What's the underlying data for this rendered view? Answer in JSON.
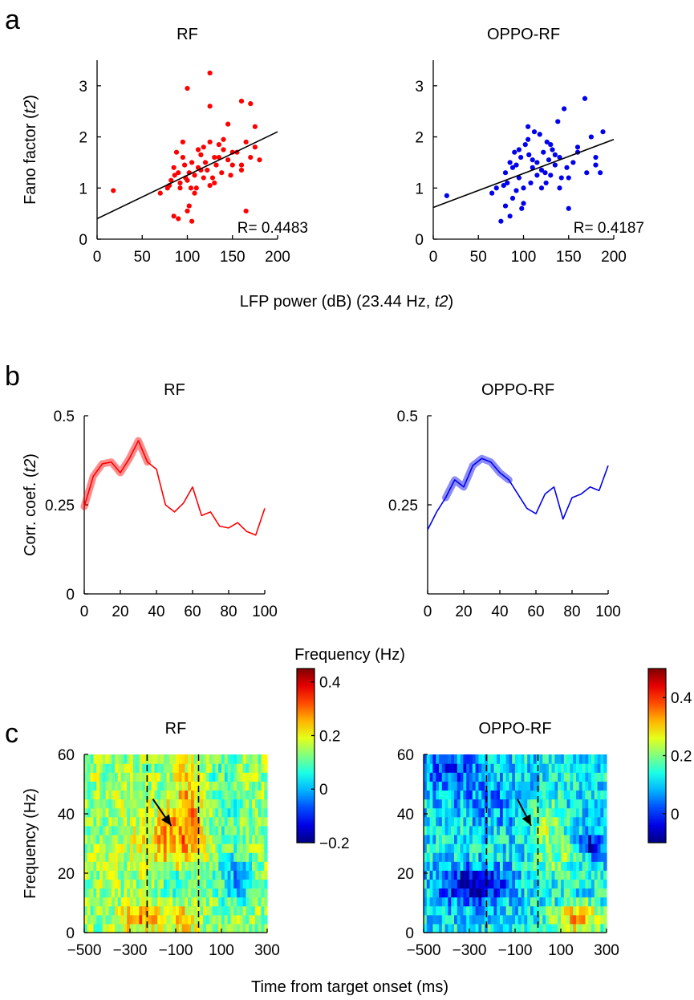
{
  "panel_labels": [
    "a",
    "b",
    "c"
  ],
  "chart_data": [
    {
      "id": "a-rf",
      "type": "scatter",
      "title": "RF",
      "ylabel": "Fano factor (t2)",
      "xlim": [
        0,
        200
      ],
      "ylim": [
        0,
        3.5
      ],
      "xticks": [
        0,
        50,
        100,
        150,
        200
      ],
      "yticks": [
        0,
        1,
        2,
        3
      ],
      "point_color": "#ff0000",
      "fit_line": {
        "x": [
          0,
          200
        ],
        "y": [
          0.4,
          2.1
        ]
      },
      "annotation": "R= 0.4483",
      "points": [
        [
          18,
          0.95
        ],
        [
          70,
          0.9
        ],
        [
          78,
          1.0
        ],
        [
          80,
          1.05
        ],
        [
          85,
          1.4
        ],
        [
          88,
          1.7
        ],
        [
          90,
          1.3
        ],
        [
          92,
          1.1
        ],
        [
          95,
          1.6
        ],
        [
          98,
          1.2
        ],
        [
          100,
          1.15
        ],
        [
          102,
          1.3
        ],
        [
          105,
          1.5
        ],
        [
          108,
          1.25
        ],
        [
          110,
          1.0
        ],
        [
          112,
          1.4
        ],
        [
          115,
          1.65
        ],
        [
          118,
          1.8
        ],
        [
          120,
          1.5
        ],
        [
          122,
          1.35
        ],
        [
          125,
          1.9
        ],
        [
          128,
          1.2
        ],
        [
          130,
          1.6
        ],
        [
          132,
          1.45
        ],
        [
          135,
          1.85
        ],
        [
          138,
          1.3
        ],
        [
          140,
          1.75
        ],
        [
          145,
          2.25
        ],
        [
          150,
          1.7
        ],
        [
          155,
          1.7
        ],
        [
          160,
          1.45
        ],
        [
          165,
          1.9
        ],
        [
          170,
          1.6
        ],
        [
          175,
          1.8
        ],
        [
          180,
          1.55
        ],
        [
          100,
          2.95
        ],
        [
          125,
          3.25
        ],
        [
          125,
          2.6
        ],
        [
          160,
          2.7
        ],
        [
          170,
          2.65
        ],
        [
          85,
          0.45
        ],
        [
          90,
          0.4
        ],
        [
          100,
          0.55
        ],
        [
          105,
          0.35
        ],
        [
          102,
          0.65
        ],
        [
          165,
          0.55
        ],
        [
          140,
          1.95
        ],
        [
          95,
          1.9
        ],
        [
          115,
          1.35
        ],
        [
          92,
          1.0
        ],
        [
          82,
          1.15
        ],
        [
          108,
          0.9
        ],
        [
          125,
          1.05
        ],
        [
          148,
          1.25
        ],
        [
          175,
          2.2
        ],
        [
          135,
          1.6
        ],
        [
          97,
          1.45
        ],
        [
          112,
          1.75
        ],
        [
          130,
          1.1
        ],
        [
          145,
          1.55
        ],
        [
          118,
          1.2
        ],
        [
          86,
          1.25
        ],
        [
          104,
          1.0
        ],
        [
          160,
          1.35
        ],
        [
          150,
          1.45
        ]
      ]
    },
    {
      "id": "a-oppo",
      "type": "scatter",
      "title": "OPPO-RF",
      "xlim": [
        0,
        200
      ],
      "ylim": [
        0,
        3.5
      ],
      "xticks": [
        0,
        50,
        100,
        150,
        200
      ],
      "yticks": [
        0,
        1,
        2,
        3
      ],
      "point_color": "#0000ee",
      "fit_line": {
        "x": [
          0,
          200
        ],
        "y": [
          0.62,
          1.95
        ]
      },
      "annotation": "R= 0.4187",
      "points": [
        [
          15,
          0.85
        ],
        [
          65,
          0.9
        ],
        [
          70,
          1.0
        ],
        [
          75,
          0.35
        ],
        [
          78,
          1.05
        ],
        [
          80,
          1.3
        ],
        [
          82,
          1.1
        ],
        [
          85,
          1.5
        ],
        [
          85,
          0.45
        ],
        [
          88,
          1.4
        ],
        [
          90,
          1.7
        ],
        [
          92,
          0.95
        ],
        [
          95,
          1.2
        ],
        [
          97,
          1.6
        ],
        [
          98,
          0.6
        ],
        [
          100,
          0.7
        ],
        [
          102,
          1.85
        ],
        [
          105,
          2.2
        ],
        [
          106,
          1.65
        ],
        [
          108,
          1.1
        ],
        [
          110,
          1.4
        ],
        [
          112,
          2.1
        ],
        [
          115,
          1.5
        ],
        [
          118,
          2.05
        ],
        [
          120,
          1.0
        ],
        [
          122,
          1.7
        ],
        [
          124,
          1.3
        ],
        [
          126,
          1.9
        ],
        [
          128,
          1.55
        ],
        [
          130,
          1.25
        ],
        [
          132,
          1.75
        ],
        [
          135,
          1.45
        ],
        [
          138,
          2.3
        ],
        [
          140,
          1.6
        ],
        [
          142,
          1.2
        ],
        [
          145,
          2.55
        ],
        [
          148,
          1.4
        ],
        [
          150,
          0.6
        ],
        [
          155,
          1.5
        ],
        [
          160,
          1.8
        ],
        [
          168,
          2.75
        ],
        [
          170,
          1.3
        ],
        [
          175,
          2.0
        ],
        [
          180,
          1.45
        ],
        [
          185,
          1.3
        ],
        [
          188,
          2.1
        ],
        [
          180,
          1.6
        ],
        [
          120,
          1.35
        ],
        [
          110,
          1.55
        ],
        [
          100,
          1.0
        ],
        [
          95,
          1.75
        ],
        [
          125,
          1.1
        ],
        [
          135,
          1.65
        ],
        [
          115,
          1.25
        ],
        [
          105,
          1.95
        ],
        [
          92,
          1.45
        ],
        [
          88,
          0.8
        ],
        [
          150,
          1.2
        ],
        [
          140,
          1.0
        ],
        [
          130,
          1.85
        ],
        [
          160,
          1.7
        ],
        [
          80,
          0.65
        ]
      ]
    },
    {
      "id": "b-rf",
      "type": "line",
      "title": "RF",
      "ylabel": "Corr. coef. (t2)",
      "xlim": [
        0,
        100
      ],
      "ylim": [
        0,
        0.5
      ],
      "xticks": [
        0,
        20,
        40,
        60,
        80,
        100
      ],
      "yticks": [
        "0",
        "0.25",
        "0.5"
      ],
      "ytick_values": [
        0,
        0.25,
        0.5
      ],
      "color": "#ff0000",
      "highlight_until": 35,
      "x": [
        0,
        5,
        10,
        15,
        20,
        25,
        30,
        35,
        40,
        45,
        50,
        55,
        60,
        65,
        70,
        75,
        80,
        85,
        90,
        95,
        100
      ],
      "values": [
        0.245,
        0.33,
        0.365,
        0.37,
        0.34,
        0.38,
        0.43,
        0.37,
        0.35,
        0.25,
        0.23,
        0.255,
        0.3,
        0.22,
        0.23,
        0.19,
        0.185,
        0.2,
        0.175,
        0.165,
        0.24
      ]
    },
    {
      "id": "b-oppo",
      "type": "line",
      "title": "OPPO-RF",
      "xlim": [
        0,
        100
      ],
      "ylim": [
        0,
        0.5
      ],
      "xticks": [
        0,
        20,
        40,
        60,
        80,
        100
      ],
      "yticks": [
        "0.25",
        "0.5"
      ],
      "ytick_values": [
        0.25,
        0.5
      ],
      "color": "#0000ee",
      "highlight_from": 8,
      "highlight_until": 48,
      "x": [
        0,
        5,
        10,
        15,
        20,
        25,
        30,
        35,
        40,
        45,
        50,
        55,
        60,
        65,
        70,
        75,
        80,
        85,
        90,
        95,
        100
      ],
      "values": [
        0.18,
        0.23,
        0.27,
        0.32,
        0.3,
        0.36,
        0.38,
        0.37,
        0.34,
        0.32,
        0.28,
        0.24,
        0.225,
        0.28,
        0.3,
        0.21,
        0.27,
        0.28,
        0.3,
        0.29,
        0.36
      ]
    },
    {
      "id": "c-rf",
      "type": "heatmap",
      "title": "RF",
      "ylabel": "Frequency (Hz)",
      "xlim": [
        -500,
        300
      ],
      "ylim": [
        0,
        60
      ],
      "xticks": [
        "-500",
        "-300",
        "-100",
        "100",
        "300"
      ],
      "xtick_values": [
        -500,
        -300,
        -100,
        100,
        300
      ],
      "yticks": [
        0,
        20,
        40,
        60
      ],
      "colorbar": {
        "min": -0.2,
        "max": 0.45,
        "ticks": [
          "0.4",
          "0.2",
          "0",
          "-0.2"
        ],
        "tick_values": [
          0.4,
          0.2,
          0,
          -0.2
        ]
      },
      "dashed_x": [
        -225,
        0
      ],
      "arrow": {
        "from": [
          -200,
          45
        ],
        "to": [
          -120,
          36
        ]
      }
    },
    {
      "id": "c-oppo",
      "type": "heatmap",
      "title": "OPPO-RF",
      "xlim": [
        -500,
        300
      ],
      "ylim": [
        0,
        60
      ],
      "xticks": [
        "-500",
        "-300",
        "-100",
        "100",
        "300"
      ],
      "xtick_values": [
        -500,
        -300,
        -100,
        100,
        300
      ],
      "yticks": [
        0,
        20,
        40,
        60
      ],
      "colorbar": {
        "min": -0.1,
        "max": 0.5,
        "ticks": [
          "0.4",
          "0.2",
          "0"
        ],
        "tick_values": [
          0.4,
          0.2,
          0
        ]
      },
      "dashed_x": [
        -225,
        0
      ],
      "arrow": {
        "from": [
          -90,
          45
        ],
        "to": [
          -30,
          36
        ]
      }
    }
  ],
  "shared_labels": {
    "a_xlabel": "LFP power (dB) (23.44 Hz, t2)",
    "b_xlabel": "Frequency (Hz)",
    "c_xlabel": "Time from target onset (ms)"
  }
}
